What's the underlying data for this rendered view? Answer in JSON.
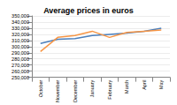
{
  "chart_data": {
    "type": "line",
    "title": "Average prices in euros",
    "categories": [
      "October",
      "November",
      "December",
      "January",
      "February",
      "March",
      "April",
      "May"
    ],
    "series": [
      {
        "color": "#4a7ebb",
        "values": [
          305000,
          312000,
          313000,
          318000,
          320000,
          322000,
          325000,
          330000
        ]
      },
      {
        "color": "#f79646",
        "values": [
          292000,
          315000,
          318000,
          325000,
          315000,
          323000,
          325000,
          327000
        ]
      }
    ],
    "ylim": [
      250000,
      350000
    ],
    "yticks": [
      {
        "value": 250000,
        "label": "250,000"
      },
      {
        "value": 260000,
        "label": "260,000"
      },
      {
        "value": 270000,
        "label": "270,000"
      },
      {
        "value": 280000,
        "label": "280,000"
      },
      {
        "value": 290000,
        "label": "290,000"
      },
      {
        "value": 300000,
        "label": "300,000"
      },
      {
        "value": 310000,
        "label": "310,000"
      },
      {
        "value": 320000,
        "label": "320,000"
      },
      {
        "value": 330000,
        "label": "330,000"
      },
      {
        "value": 340000,
        "label": "340,000"
      },
      {
        "value": 350000,
        "label": "350,000"
      }
    ],
    "grid": true
  }
}
